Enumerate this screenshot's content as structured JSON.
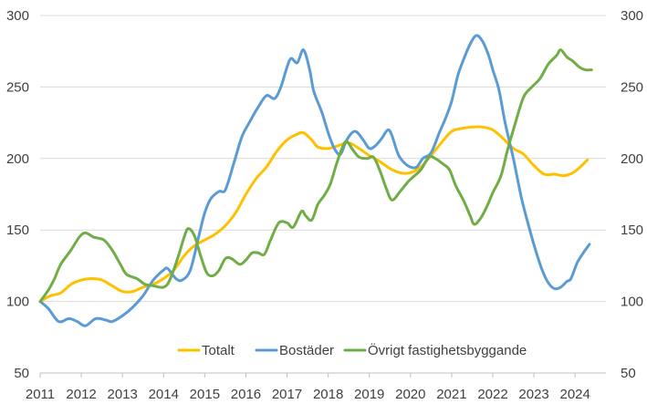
{
  "chart_data": {
    "type": "line",
    "title": "",
    "xlabel": "",
    "ylabel": "",
    "ylim": [
      50,
      300
    ],
    "yticks": [
      50,
      100,
      150,
      200,
      250,
      300
    ],
    "xlim": [
      2011,
      2024.75
    ],
    "xticks": [
      "2011",
      "2012",
      "2013",
      "2014",
      "2015",
      "2016",
      "2017",
      "2018",
      "2019",
      "2020",
      "2021",
      "2022",
      "2023",
      "2024"
    ],
    "grid": "horizontal",
    "secondary_y_axis": true,
    "legend_position": "bottom-inside",
    "series": [
      {
        "name": "Totalt",
        "color": "#FFC000",
        "points": [
          [
            2011.0,
            100
          ],
          [
            2011.25,
            104
          ],
          [
            2011.5,
            106
          ],
          [
            2011.75,
            112
          ],
          [
            2012.0,
            115
          ],
          [
            2012.25,
            116
          ],
          [
            2012.5,
            115
          ],
          [
            2012.75,
            111
          ],
          [
            2013.0,
            107
          ],
          [
            2013.25,
            107
          ],
          [
            2013.5,
            110
          ],
          [
            2013.75,
            112
          ],
          [
            2014.0,
            116
          ],
          [
            2014.25,
            122
          ],
          [
            2014.5,
            132
          ],
          [
            2014.75,
            139
          ],
          [
            2015.0,
            143
          ],
          [
            2015.25,
            147
          ],
          [
            2015.5,
            153
          ],
          [
            2015.75,
            162
          ],
          [
            2016.0,
            175
          ],
          [
            2016.25,
            186
          ],
          [
            2016.5,
            194
          ],
          [
            2016.75,
            205
          ],
          [
            2017.0,
            213
          ],
          [
            2017.25,
            217
          ],
          [
            2017.4,
            218
          ],
          [
            2017.6,
            213
          ],
          [
            2017.75,
            208
          ],
          [
            2018.0,
            207
          ],
          [
            2018.25,
            209
          ],
          [
            2018.5,
            211
          ],
          [
            2018.75,
            207
          ],
          [
            2019.0,
            202
          ],
          [
            2019.25,
            198
          ],
          [
            2019.5,
            193
          ],
          [
            2019.75,
            190
          ],
          [
            2020.0,
            190
          ],
          [
            2020.25,
            194
          ],
          [
            2020.5,
            202
          ],
          [
            2020.75,
            211
          ],
          [
            2021.0,
            219
          ],
          [
            2021.25,
            221
          ],
          [
            2021.5,
            222
          ],
          [
            2021.75,
            222
          ],
          [
            2022.0,
            220
          ],
          [
            2022.25,
            214
          ],
          [
            2022.5,
            207
          ],
          [
            2022.75,
            203
          ],
          [
            2023.0,
            195
          ],
          [
            2023.25,
            189
          ],
          [
            2023.5,
            189
          ],
          [
            2023.75,
            188
          ],
          [
            2024.0,
            191
          ],
          [
            2024.3,
            199
          ]
        ]
      },
      {
        "name": "Bostäder",
        "color": "#5B9BD5",
        "points": [
          [
            2011.0,
            100
          ],
          [
            2011.2,
            95
          ],
          [
            2011.45,
            86
          ],
          [
            2011.7,
            88
          ],
          [
            2011.9,
            86
          ],
          [
            2012.1,
            83
          ],
          [
            2012.35,
            88
          ],
          [
            2012.6,
            87
          ],
          [
            2012.75,
            86
          ],
          [
            2013.0,
            90
          ],
          [
            2013.25,
            96
          ],
          [
            2013.5,
            104
          ],
          [
            2013.75,
            115
          ],
          [
            2014.0,
            122
          ],
          [
            2014.1,
            123
          ],
          [
            2014.3,
            116
          ],
          [
            2014.45,
            115
          ],
          [
            2014.65,
            122
          ],
          [
            2014.85,
            145
          ],
          [
            2015.0,
            162
          ],
          [
            2015.15,
            172
          ],
          [
            2015.35,
            177
          ],
          [
            2015.5,
            178
          ],
          [
            2015.7,
            196
          ],
          [
            2015.9,
            215
          ],
          [
            2016.1,
            226
          ],
          [
            2016.3,
            236
          ],
          [
            2016.5,
            244
          ],
          [
            2016.7,
            242
          ],
          [
            2016.85,
            250
          ],
          [
            2017.0,
            264
          ],
          [
            2017.1,
            270
          ],
          [
            2017.25,
            267
          ],
          [
            2017.4,
            276
          ],
          [
            2017.55,
            262
          ],
          [
            2017.65,
            247
          ],
          [
            2017.85,
            232
          ],
          [
            2018.0,
            218
          ],
          [
            2018.15,
            207
          ],
          [
            2018.3,
            203
          ],
          [
            2018.45,
            213
          ],
          [
            2018.65,
            219
          ],
          [
            2018.85,
            213
          ],
          [
            2019.0,
            207
          ],
          [
            2019.15,
            209
          ],
          [
            2019.3,
            214
          ],
          [
            2019.45,
            220
          ],
          [
            2019.55,
            216
          ],
          [
            2019.7,
            203
          ],
          [
            2019.85,
            197
          ],
          [
            2020.0,
            194
          ],
          [
            2020.15,
            194
          ],
          [
            2020.3,
            200
          ],
          [
            2020.5,
            204
          ],
          [
            2020.7,
            218
          ],
          [
            2020.85,
            228
          ],
          [
            2021.0,
            240
          ],
          [
            2021.15,
            258
          ],
          [
            2021.3,
            270
          ],
          [
            2021.45,
            280
          ],
          [
            2021.6,
            286
          ],
          [
            2021.75,
            282
          ],
          [
            2021.9,
            272
          ],
          [
            2022.0,
            262
          ],
          [
            2022.15,
            248
          ],
          [
            2022.3,
            225
          ],
          [
            2022.5,
            200
          ],
          [
            2022.7,
            172
          ],
          [
            2022.9,
            150
          ],
          [
            2023.05,
            135
          ],
          [
            2023.2,
            122
          ],
          [
            2023.35,
            113
          ],
          [
            2023.5,
            109
          ],
          [
            2023.65,
            110
          ],
          [
            2023.8,
            114
          ],
          [
            2023.9,
            116
          ],
          [
            2024.05,
            127
          ],
          [
            2024.2,
            134
          ],
          [
            2024.35,
            140
          ]
        ]
      },
      {
        "name": "Övrigt fastighetsbyggande",
        "color": "#70AD47",
        "points": [
          [
            2011.0,
            100
          ],
          [
            2011.2,
            108
          ],
          [
            2011.35,
            116
          ],
          [
            2011.5,
            126
          ],
          [
            2011.75,
            136
          ],
          [
            2011.95,
            145
          ],
          [
            2012.1,
            148
          ],
          [
            2012.3,
            145
          ],
          [
            2012.55,
            143
          ],
          [
            2012.75,
            136
          ],
          [
            2012.95,
            126
          ],
          [
            2013.1,
            119
          ],
          [
            2013.35,
            116
          ],
          [
            2013.55,
            112
          ],
          [
            2013.75,
            111
          ],
          [
            2014.0,
            110
          ],
          [
            2014.15,
            115
          ],
          [
            2014.35,
            131
          ],
          [
            2014.5,
            145
          ],
          [
            2014.6,
            151
          ],
          [
            2014.75,
            146
          ],
          [
            2014.9,
            132
          ],
          [
            2015.05,
            120
          ],
          [
            2015.2,
            118
          ],
          [
            2015.35,
            122
          ],
          [
            2015.5,
            130
          ],
          [
            2015.65,
            130
          ],
          [
            2015.85,
            126
          ],
          [
            2016.0,
            129
          ],
          [
            2016.15,
            134
          ],
          [
            2016.3,
            134
          ],
          [
            2016.45,
            133
          ],
          [
            2016.6,
            143
          ],
          [
            2016.8,
            155
          ],
          [
            2017.0,
            155
          ],
          [
            2017.15,
            152
          ],
          [
            2017.35,
            163
          ],
          [
            2017.45,
            160
          ],
          [
            2017.6,
            157
          ],
          [
            2017.75,
            168
          ],
          [
            2017.9,
            174
          ],
          [
            2018.05,
            182
          ],
          [
            2018.2,
            196
          ],
          [
            2018.35,
            208
          ],
          [
            2018.45,
            212
          ],
          [
            2018.6,
            206
          ],
          [
            2018.75,
            201
          ],
          [
            2018.95,
            200
          ],
          [
            2019.1,
            201
          ],
          [
            2019.25,
            192
          ],
          [
            2019.4,
            180
          ],
          [
            2019.55,
            171
          ],
          [
            2019.75,
            177
          ],
          [
            2019.95,
            184
          ],
          [
            2020.1,
            188
          ],
          [
            2020.25,
            192
          ],
          [
            2020.45,
            201
          ],
          [
            2020.6,
            200
          ],
          [
            2020.8,
            196
          ],
          [
            2020.95,
            192
          ],
          [
            2021.1,
            181
          ],
          [
            2021.3,
            170
          ],
          [
            2021.45,
            160
          ],
          [
            2021.55,
            154
          ],
          [
            2021.7,
            158
          ],
          [
            2021.85,
            166
          ],
          [
            2022.0,
            176
          ],
          [
            2022.2,
            188
          ],
          [
            2022.35,
            205
          ],
          [
            2022.55,
            225
          ],
          [
            2022.75,
            243
          ],
          [
            2022.95,
            250
          ],
          [
            2023.15,
            256
          ],
          [
            2023.35,
            266
          ],
          [
            2023.55,
            272
          ],
          [
            2023.65,
            276
          ],
          [
            2023.8,
            271
          ],
          [
            2023.95,
            268
          ],
          [
            2024.1,
            264
          ],
          [
            2024.25,
            262
          ],
          [
            2024.4,
            262
          ]
        ]
      }
    ]
  }
}
